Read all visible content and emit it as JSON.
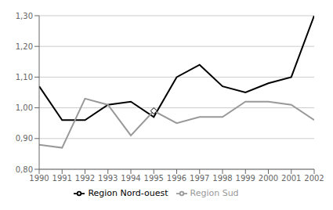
{
  "chart_data": {
    "type": "line",
    "x": [
      1990,
      1991,
      1992,
      1993,
      1994,
      1995,
      1996,
      1997,
      1998,
      1999,
      2000,
      2001,
      2002
    ],
    "series": [
      {
        "name": "Region Nord-ouest",
        "color": "#000000",
        "values": [
          1.07,
          0.96,
          0.96,
          1.01,
          1.02,
          0.97,
          1.1,
          1.14,
          1.07,
          1.05,
          1.08,
          1.1,
          1.3
        ]
      },
      {
        "name": "Region Sud",
        "color": "#999999",
        "values": [
          0.88,
          0.87,
          1.03,
          1.01,
          0.91,
          0.99,
          0.95,
          0.97,
          0.97,
          1.02,
          1.02,
          1.01,
          0.96
        ],
        "highlight": [
          {
            "x": 1995,
            "y": 0.99,
            "marker": "diamond"
          }
        ]
      }
    ],
    "xlim": [
      1990,
      2002
    ],
    "xticks": [
      1990,
      1991,
      1992,
      1993,
      1994,
      1995,
      1996,
      1997,
      1998,
      1999,
      2000,
      2001,
      2002
    ],
    "ylim": [
      0.8,
      1.3
    ],
    "yticks": [
      {
        "value": 0.8,
        "label": "0,80"
      },
      {
        "value": 0.9,
        "label": "0,90"
      },
      {
        "value": 1.0,
        "label": "1,00"
      },
      {
        "value": 1.1,
        "label": "1,10"
      },
      {
        "value": 1.2,
        "label": "1,20"
      },
      {
        "value": 1.3,
        "label": "1,30"
      }
    ],
    "grid": true,
    "legend": "bottom",
    "background_color": "#ffffff"
  }
}
